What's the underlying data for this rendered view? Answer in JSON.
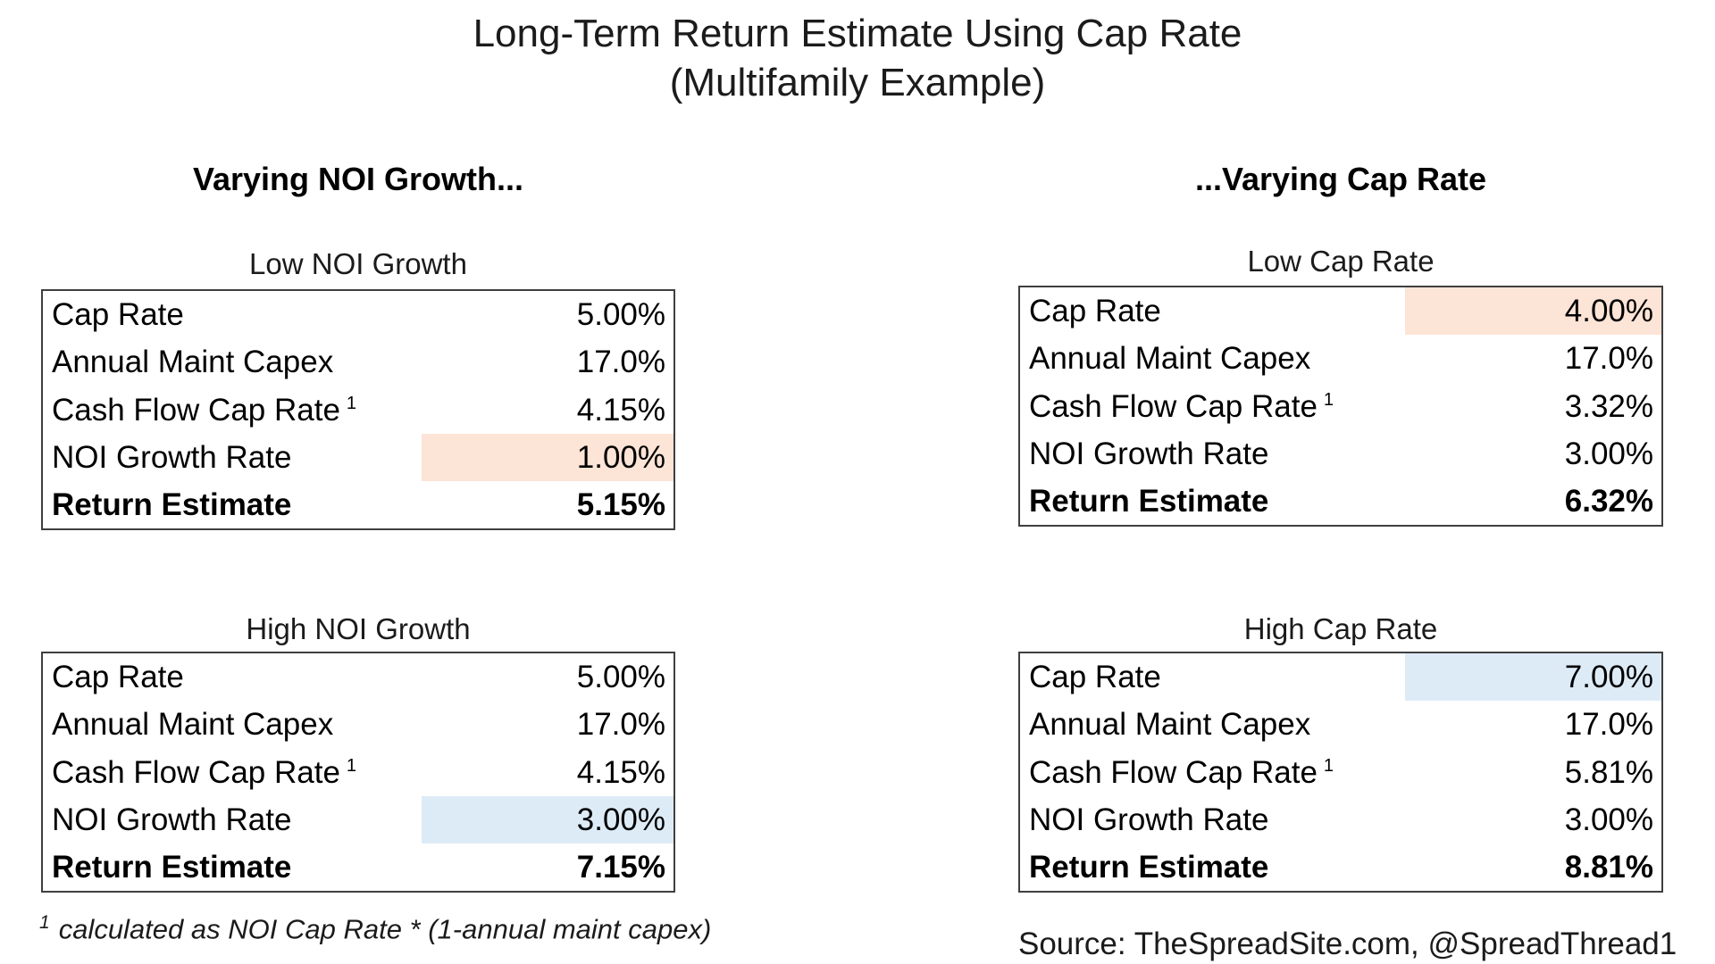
{
  "title": {
    "line1": "Long-Term Return Estimate Using Cap Rate",
    "line2": "(Multifamily Example)"
  },
  "section_headers": {
    "left": "Varying NOI Growth...",
    "right": "...Varying Cap Rate"
  },
  "colors": {
    "highlight_orange": "#FCE4D6",
    "highlight_blue": "#DDEBF7",
    "table_border": "#3f3f3f",
    "text_color": "#000000"
  },
  "tables": [
    {
      "title": "Low NOI Growth",
      "rows": [
        {
          "label": "Cap Rate",
          "value": "5.00%"
        },
        {
          "label": "Annual Maint Capex",
          "value": "17.0%"
        },
        {
          "label": "Cash Flow Cap Rate",
          "footnote_marker": "1",
          "value": "4.15%"
        },
        {
          "label": "NOI Growth Rate",
          "value": "1.00%",
          "highlight": "orange"
        },
        {
          "label": "Return Estimate",
          "value": "5.15%",
          "bold": true
        }
      ]
    },
    {
      "title": "Low Cap Rate",
      "rows": [
        {
          "label": "Cap Rate",
          "value": "4.00%",
          "highlight": "orange"
        },
        {
          "label": "Annual Maint Capex",
          "value": "17.0%"
        },
        {
          "label": "Cash Flow Cap Rate",
          "footnote_marker": "1",
          "value": "3.32%"
        },
        {
          "label": "NOI Growth Rate",
          "value": "3.00%"
        },
        {
          "label": "Return Estimate",
          "value": "6.32%",
          "bold": true
        }
      ]
    },
    {
      "title": "High NOI Growth",
      "rows": [
        {
          "label": "Cap Rate",
          "value": "5.00%"
        },
        {
          "label": "Annual Maint Capex",
          "value": "17.0%"
        },
        {
          "label": "Cash Flow Cap Rate",
          "footnote_marker": "1",
          "value": "4.15%"
        },
        {
          "label": "NOI Growth Rate",
          "value": "3.00%",
          "highlight": "blue"
        },
        {
          "label": "Return Estimate",
          "value": "7.15%",
          "bold": true
        }
      ]
    },
    {
      "title": "High Cap Rate",
      "rows": [
        {
          "label": "Cap Rate",
          "value": "7.00%",
          "highlight": "blue"
        },
        {
          "label": "Annual Maint Capex",
          "value": "17.0%"
        },
        {
          "label": "Cash Flow Cap Rate",
          "footnote_marker": "1",
          "value": "5.81%"
        },
        {
          "label": "NOI Growth Rate",
          "value": "3.00%"
        },
        {
          "label": "Return Estimate",
          "value": "8.81%",
          "bold": true
        }
      ]
    }
  ],
  "footnote": {
    "marker": "1",
    "text": "calculated as NOI Cap Rate * (1-annual maint capex)"
  },
  "source": "Source: TheSpreadSite.com, @SpreadThread1"
}
